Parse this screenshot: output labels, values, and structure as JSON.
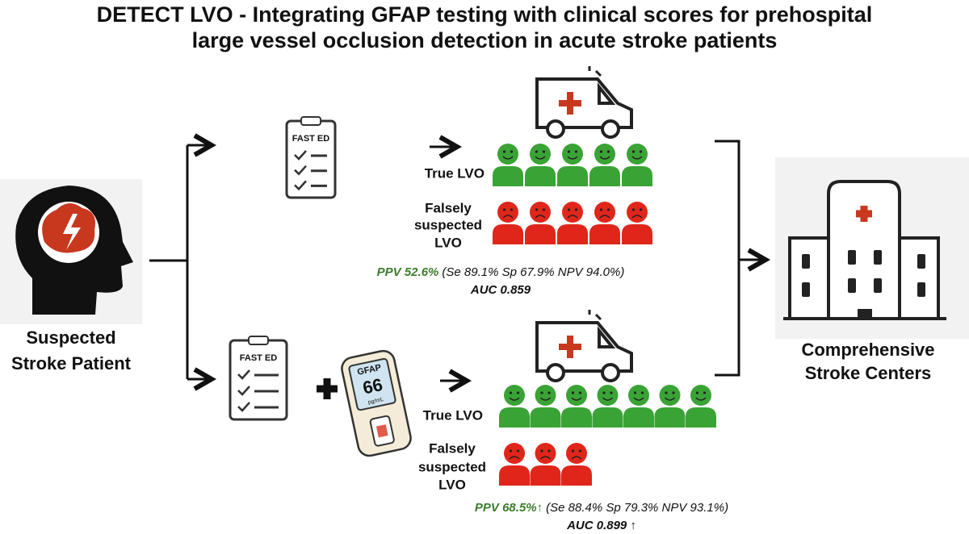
{
  "title": [
    "DETECT LVO - Integrating GFAP testing with clinical scores for prehospital",
    "large vessel occlusion detection in acute stroke patients"
  ],
  "patient": {
    "label": [
      "Suspected",
      "Stroke Patient"
    ]
  },
  "center": {
    "label": [
      "Comprehensive",
      "Stroke Centers"
    ]
  },
  "pathways": [
    {
      "score": "FAST ED",
      "true_label": "True LVO",
      "false_label": [
        "Falsely",
        "suspected",
        "LVO"
      ],
      "true_icons": 5,
      "false_icons": 5,
      "ppv": "PPV 52.6%",
      "metrics": "(Se 89.1% Sp 67.9% NPV 94.0%)",
      "auc": "AUC 0.859"
    },
    {
      "score": "FAST ED",
      "device": {
        "name": "GFAP",
        "reading": "66",
        "unit": "pg/mL"
      },
      "true_label": "True LVO",
      "false_label": [
        "Falsely",
        "suspected",
        "LVO"
      ],
      "true_icons": 7,
      "false_icons": 3,
      "ppv": "PPV 68.5%",
      "ppv_trend": "↑",
      "metrics": "(Se 88.4% Sp 79.3% NPV 93.1%)",
      "auc": "AUC 0.899 ↑"
    }
  ]
}
